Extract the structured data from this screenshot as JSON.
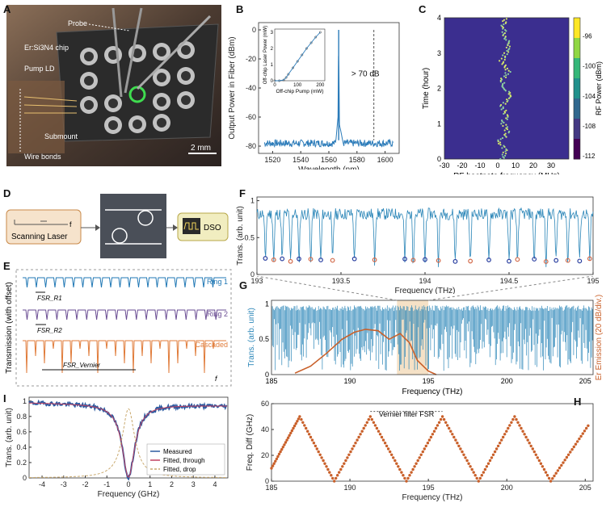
{
  "panel_labels": [
    "A",
    "B",
    "C",
    "D",
    "E",
    "F",
    "G",
    "H",
    "I"
  ],
  "panelA": {
    "labels": [
      "Probe",
      "Er:Si3N4 chip",
      "Pump LD",
      "Submount",
      "Wire bonds"
    ],
    "scale": "2 mm"
  },
  "panelD": {
    "laser_label": "Scanning Laser",
    "laser_f": "f",
    "dso_label": "DSO"
  },
  "panelE": {
    "ylabel": "Transmission (with offset)",
    "traces": [
      {
        "name": "Ring 1",
        "color": "#1f77b4"
      },
      {
        "name": "Ring 2",
        "color": "#6a4c93"
      },
      {
        "name": "Cascaded",
        "color": "#e07b39"
      }
    ],
    "fsr_labels": [
      "FSR_R1",
      "FSR_R2",
      "FSR_Vernier"
    ],
    "xlabel": "f"
  },
  "chart_data": [
    {
      "id": "B",
      "type": "line",
      "xlabel": "Wavelength (nm)",
      "ylabel": "Output Power in Fiber (dBm)",
      "xlim": [
        1510,
        1610
      ],
      "ylim": [
        -85,
        5
      ],
      "xticks": [
        1520,
        1540,
        1560,
        1580,
        1600
      ],
      "yticks": [
        0,
        -20,
        -40,
        -60,
        -80
      ],
      "annotation": "> 70 dB",
      "series": [
        {
          "x": [
            1515,
            1530,
            1545,
            1560,
            1565,
            1566.5,
            1567,
            1567.5,
            1570,
            1585,
            1600
          ],
          "y": [
            -78,
            -79,
            -79,
            -77,
            -76,
            -60,
            0,
            -65,
            -77,
            -78,
            -79
          ]
        }
      ],
      "inset": {
        "type": "scatter",
        "xlabel": "Off-chip Pump (mW)",
        "ylabel": "Off-chip Laser Power (mW)",
        "xlim": [
          0,
          220
        ],
        "ylim": [
          0,
          3.2
        ],
        "xticks": [
          0,
          100,
          200
        ],
        "yticks": [
          0,
          1,
          2,
          3
        ],
        "x": [
          0,
          20,
          40,
          50,
          60,
          80,
          100,
          120,
          140,
          160,
          180,
          200
        ],
        "y": [
          0,
          0,
          0.05,
          0.2,
          0.4,
          0.8,
          1.2,
          1.6,
          2.0,
          2.35,
          2.7,
          3.0
        ]
      }
    },
    {
      "id": "C",
      "type": "heatmap",
      "xlabel": "RF beatnote frequency (MHz)",
      "ylabel": "Time (hour)",
      "colorbar_label": "RF Power (dBm)",
      "xlim": [
        -30,
        40
      ],
      "ylim": [
        0,
        4
      ],
      "xticks": [
        -30,
        -20,
        -10,
        0,
        10,
        20,
        30
      ],
      "yticks": [
        0,
        1,
        2,
        3,
        4
      ],
      "cbar_ticks": [
        -96,
        -100,
        -104,
        -108,
        -112
      ],
      "trace": {
        "t": [
          0,
          0.25,
          0.5,
          0.75,
          1.0,
          1.25,
          1.5,
          1.75,
          2.0,
          2.25,
          2.5,
          2.75,
          3.0,
          3.25,
          3.5,
          3.75,
          4.0
        ],
        "f": [
          2,
          4,
          1,
          6,
          3,
          5,
          2,
          7,
          4,
          3,
          6,
          2,
          5,
          7,
          4,
          3,
          5
        ]
      }
    },
    {
      "id": "F",
      "type": "line",
      "xlabel": "Frequency (THz)",
      "ylabel": "Trans. (arb. unit)",
      "xlim": [
        193,
        195
      ],
      "ylim": [
        0,
        1.05
      ],
      "xticks": [
        193,
        193.5,
        194,
        194.5,
        195
      ],
      "xtick_labels": [
        "193",
        "193.5",
        "194",
        "194.5",
        "195"
      ],
      "yticks": [
        0,
        0.5,
        1
      ],
      "dips_blue": [
        193.05,
        193.15,
        193.25,
        193.38,
        193.58,
        193.88,
        194.0,
        194.18,
        194.38,
        194.5,
        194.65,
        194.78,
        194.92
      ],
      "dips_orange": [
        193.1,
        193.2,
        193.32,
        193.45,
        193.7,
        193.93,
        194.08,
        194.27,
        194.55,
        194.72,
        194.85,
        194.98
      ]
    },
    {
      "id": "G",
      "type": "line",
      "xlabel": "Frequency (THz)",
      "ylabel": "Trans. (arb. unit)",
      "y2label": "Er Emission (20 dB/div.)",
      "xlim": [
        185,
        205.5
      ],
      "ylim": [
        0,
        1.05
      ],
      "xticks": [
        185,
        190,
        195,
        200,
        205
      ],
      "yticks": [
        0,
        0.5,
        1
      ],
      "highlight": [
        193,
        195
      ],
      "emission": {
        "x": [
          186.5,
          187.5,
          188.5,
          189.5,
          190.3,
          191,
          191.8,
          192.5,
          193.2,
          193.8,
          194.3,
          195,
          195.5
        ],
        "y": [
          0.02,
          0.12,
          0.3,
          0.5,
          0.6,
          0.64,
          0.62,
          0.5,
          0.58,
          0.45,
          0.2,
          0.05,
          0.0
        ]
      }
    },
    {
      "id": "H",
      "type": "scatter",
      "xlabel": "Frequency (THz)",
      "ylabel": "Freq. Diff (GHz)",
      "xlim": [
        185,
        205.5
      ],
      "ylim": [
        0,
        60
      ],
      "xticks": [
        185,
        190,
        195,
        200,
        205
      ],
      "yticks": [
        0,
        20,
        40,
        60
      ],
      "annotation": "Vernier filter FSR",
      "vertices": {
        "x": [
          185,
          186.8,
          189.0,
          191.3,
          193.6,
          195.9,
          198.2,
          200.5,
          202.8,
          205.3
        ],
        "y": [
          10,
          50,
          0,
          50,
          0,
          50,
          0,
          50,
          0,
          45
        ]
      }
    },
    {
      "id": "I",
      "type": "line",
      "xlabel": "Frequency (GHz)",
      "ylabel": "Trans. (arb. unit)",
      "xlim": [
        -4.6,
        4.6
      ],
      "ylim": [
        0,
        1.05
      ],
      "xticks": [
        -4,
        -3,
        -2,
        -1,
        0,
        1,
        2,
        3,
        4
      ],
      "yticks": [
        0,
        0.2,
        0.4,
        0.6,
        0.8,
        1
      ],
      "legend": [
        "Measured",
        "Fitted, through",
        "Fitted, drop"
      ],
      "series": [
        {
          "name": "Measured",
          "color": "#2c5aa0"
        },
        {
          "name": "Fitted, through",
          "color": "#c04060"
        },
        {
          "name": "Fitted, drop",
          "color": "#c9a96e"
        }
      ]
    }
  ]
}
